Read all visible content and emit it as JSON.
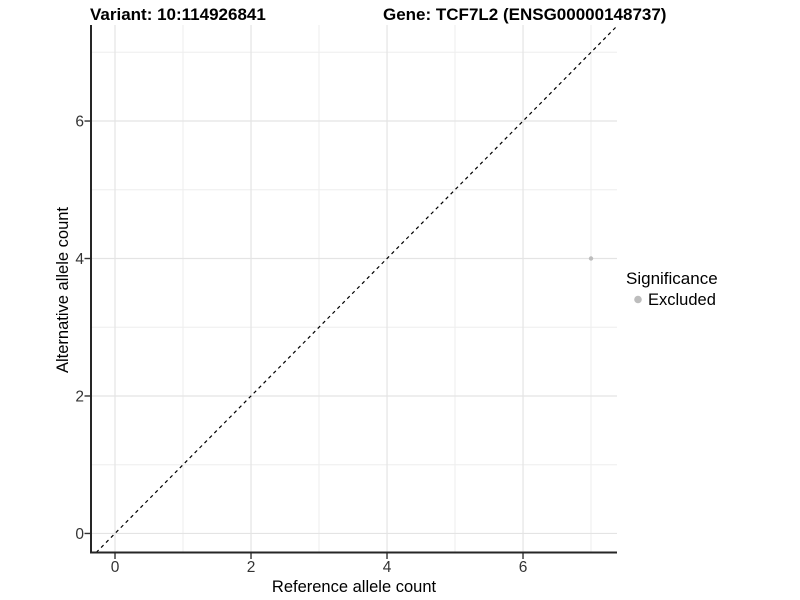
{
  "titles": {
    "variant": "Variant: 10:114926841",
    "gene": "Gene: TCF7L2 (ENSG00000148737)"
  },
  "legend": {
    "title": "Significance",
    "items": [
      {
        "label": "Excluded",
        "color": "#bdbdbd"
      }
    ]
  },
  "chart_data": {
    "type": "scatter",
    "title": "Variant: 10:114926841 | Gene: TCF7L2 (ENSG00000148737)",
    "xlabel": "Reference allele count",
    "ylabel": "Alternative allele count",
    "xlim": [
      -0.353,
      7.382
    ],
    "ylim": [
      -0.277,
      7.397
    ],
    "x_major_ticks": [
      0,
      2,
      4,
      6
    ],
    "x_minor_gridlines": [
      1,
      3,
      5,
      7
    ],
    "y_major_ticks": [
      0,
      2,
      4,
      6
    ],
    "y_minor_gridlines": [
      1,
      3,
      5,
      7
    ],
    "grid": "major+minor",
    "legend_position": "right",
    "series": [
      {
        "name": "Excluded",
        "color": "#bdbdbd",
        "points": [
          {
            "x": 7,
            "y": 4
          }
        ]
      }
    ],
    "reference_line": {
      "kind": "identity",
      "slope": 1,
      "intercept": 0,
      "style": "dashed",
      "color": "#000000"
    }
  },
  "style_colors": {
    "background": "#ffffff",
    "grid_major": "#e4e4e4",
    "grid_minor": "#eeeeee",
    "axis_line": "#262626",
    "tick_mark": "#333333",
    "tick_label": "#333333",
    "title_text": "#000000"
  }
}
